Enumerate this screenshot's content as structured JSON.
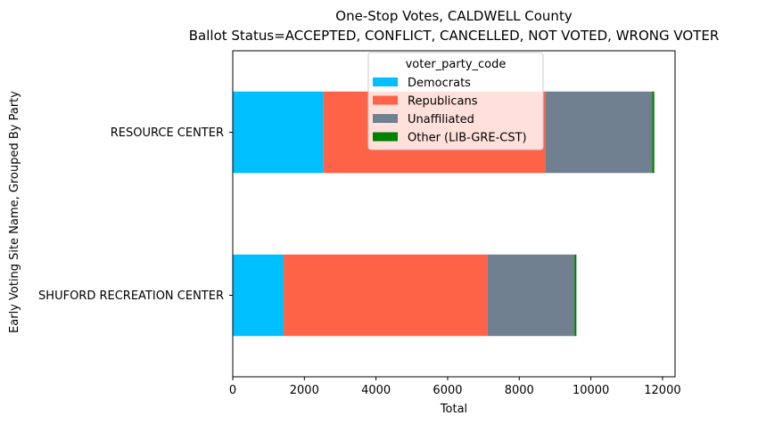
{
  "chart_data": {
    "type": "bar",
    "orientation": "horizontal",
    "stacked": true,
    "title": "One-Stop Votes, CALDWELL County",
    "subtitle": "Ballot Status=ACCEPTED, CONFLICT, CANCELLED, NOT VOTED, WRONG VOTER",
    "xlabel": "Total",
    "ylabel": "Early Voting Site Name, Grouped By Party",
    "xlim": [
      0,
      12350
    ],
    "xticks": [
      0,
      2000,
      4000,
      6000,
      8000,
      10000,
      12000
    ],
    "grid": false,
    "legend": {
      "title": "voter_party_code",
      "placement": "upper-center"
    },
    "categories": [
      "RESOURCE CENTER",
      "SHUFORD RECREATION CENTER"
    ],
    "series": [
      {
        "name": "Democrats",
        "color": "#00BFFF",
        "values": [
          2530,
          1420
        ]
      },
      {
        "name": "Republicans",
        "color": "#FF6347",
        "values": [
          6200,
          5700
        ]
      },
      {
        "name": "Unaffiliated",
        "color": "#708090",
        "values": [
          2980,
          2420
        ]
      },
      {
        "name": "Other (LIB-GRE-CST)",
        "color": "#008000",
        "values": [
          60,
          55
        ]
      }
    ]
  }
}
